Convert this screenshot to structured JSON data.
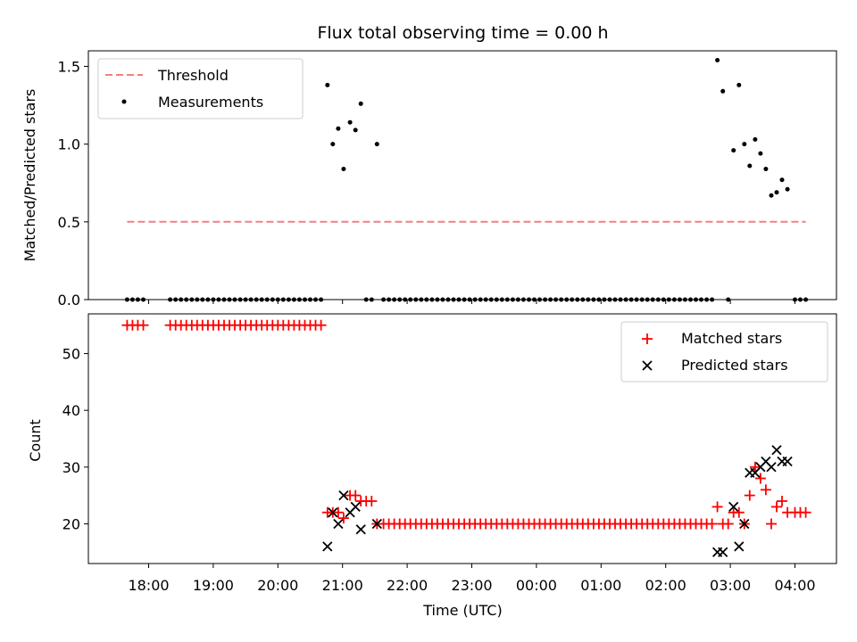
{
  "chart_data": [
    {
      "type": "scatter",
      "title": "Flux total observing time = 0.00 h",
      "xlabel": "",
      "ylabel": "Matched/Predicted stars",
      "ylim": [
        0,
        1.6
      ],
      "yticks": [
        "0.0",
        "0.5",
        "1.0",
        "1.5"
      ],
      "legend_position": "top-left",
      "threshold": {
        "name": "Threshold",
        "value": 0.5,
        "x_range": [
          "17:40",
          "04:10"
        ],
        "color": "#f08080"
      },
      "series": [
        {
          "name": "Measurements",
          "color": "#000000",
          "points": [
            [
              "17:40",
              0
            ],
            [
              "17:45",
              0
            ],
            [
              "17:50",
              0
            ],
            [
              "17:55",
              0
            ],
            [
              "18:20",
              0
            ],
            [
              "18:25",
              0
            ],
            [
              "18:30",
              0
            ],
            [
              "18:35",
              0
            ],
            [
              "18:40",
              0
            ],
            [
              "18:45",
              0
            ],
            [
              "18:50",
              0
            ],
            [
              "18:55",
              0
            ],
            [
              "19:00",
              0
            ],
            [
              "19:05",
              0
            ],
            [
              "19:10",
              0
            ],
            [
              "19:15",
              0
            ],
            [
              "19:20",
              0
            ],
            [
              "19:25",
              0
            ],
            [
              "19:30",
              0
            ],
            [
              "19:35",
              0
            ],
            [
              "19:40",
              0
            ],
            [
              "19:45",
              0
            ],
            [
              "19:50",
              0
            ],
            [
              "19:55",
              0
            ],
            [
              "20:00",
              0
            ],
            [
              "20:05",
              0
            ],
            [
              "20:10",
              0
            ],
            [
              "20:15",
              0
            ],
            [
              "20:20",
              0
            ],
            [
              "20:25",
              0
            ],
            [
              "20:30",
              0
            ],
            [
              "20:35",
              0
            ],
            [
              "20:40",
              0
            ],
            [
              "20:46",
              1.38
            ],
            [
              "20:51",
              1.0
            ],
            [
              "20:56",
              1.1
            ],
            [
              "21:01",
              0.84
            ],
            [
              "21:07",
              1.14
            ],
            [
              "21:12",
              1.09
            ],
            [
              "21:17",
              1.26
            ],
            [
              "21:22",
              0
            ],
            [
              "21:27",
              0
            ],
            [
              "21:32",
              1.0
            ],
            [
              "21:38",
              0
            ],
            [
              "21:43",
              0
            ],
            [
              "21:48",
              0
            ],
            [
              "21:53",
              0
            ],
            [
              "21:58",
              0
            ],
            [
              "22:03",
              0
            ],
            [
              "22:08",
              0
            ],
            [
              "22:13",
              0
            ],
            [
              "22:18",
              0
            ],
            [
              "22:23",
              0
            ],
            [
              "22:28",
              0
            ],
            [
              "22:33",
              0
            ],
            [
              "22:38",
              0
            ],
            [
              "22:43",
              0
            ],
            [
              "22:48",
              0
            ],
            [
              "22:53",
              0
            ],
            [
              "22:58",
              0
            ],
            [
              "23:03",
              0
            ],
            [
              "23:08",
              0
            ],
            [
              "23:13",
              0
            ],
            [
              "23:18",
              0
            ],
            [
              "23:23",
              0
            ],
            [
              "23:28",
              0
            ],
            [
              "23:33",
              0
            ],
            [
              "23:38",
              0
            ],
            [
              "23:43",
              0
            ],
            [
              "23:48",
              0
            ],
            [
              "23:53",
              0
            ],
            [
              "23:58",
              0
            ],
            [
              "00:03",
              0
            ],
            [
              "00:08",
              0
            ],
            [
              "00:13",
              0
            ],
            [
              "00:18",
              0
            ],
            [
              "00:23",
              0
            ],
            [
              "00:28",
              0
            ],
            [
              "00:33",
              0
            ],
            [
              "00:38",
              0
            ],
            [
              "00:43",
              0
            ],
            [
              "00:48",
              0
            ],
            [
              "00:53",
              0
            ],
            [
              "00:58",
              0
            ],
            [
              "01:03",
              0
            ],
            [
              "01:08",
              0
            ],
            [
              "01:13",
              0
            ],
            [
              "01:18",
              0
            ],
            [
              "01:23",
              0
            ],
            [
              "01:28",
              0
            ],
            [
              "01:33",
              0
            ],
            [
              "01:38",
              0
            ],
            [
              "01:43",
              0
            ],
            [
              "01:48",
              0
            ],
            [
              "01:53",
              0
            ],
            [
              "01:58",
              0
            ],
            [
              "02:03",
              0
            ],
            [
              "02:08",
              0
            ],
            [
              "02:13",
              0
            ],
            [
              "02:18",
              0
            ],
            [
              "02:23",
              0
            ],
            [
              "02:28",
              0
            ],
            [
              "02:33",
              0
            ],
            [
              "02:38",
              0
            ],
            [
              "02:43",
              0
            ],
            [
              "02:48",
              1.54
            ],
            [
              "02:53",
              1.34
            ],
            [
              "02:58",
              0
            ],
            [
              "03:03",
              0.96
            ],
            [
              "03:08",
              1.38
            ],
            [
              "03:13",
              1.0
            ],
            [
              "03:18",
              0.86
            ],
            [
              "03:23",
              1.03
            ],
            [
              "03:28",
              0.94
            ],
            [
              "03:33",
              0.84
            ],
            [
              "03:38",
              0.67
            ],
            [
              "03:43",
              0.69
            ],
            [
              "03:48",
              0.77
            ],
            [
              "03:53",
              0.71
            ],
            [
              "04:00",
              0
            ],
            [
              "04:05",
              0
            ],
            [
              "04:10",
              0
            ]
          ]
        }
      ]
    },
    {
      "type": "scatter",
      "title": "",
      "xlabel": "Time (UTC)",
      "ylabel": "Count",
      "ylim": [
        13,
        57
      ],
      "yticks": [
        "20",
        "30",
        "40",
        "50"
      ],
      "xticks": [
        "18:00",
        "19:00",
        "20:00",
        "21:00",
        "22:00",
        "23:00",
        "00:00",
        "01:00",
        "02:00",
        "03:00",
        "04:00"
      ],
      "legend_position": "top-right",
      "series": [
        {
          "name": "Matched stars",
          "marker": "plus",
          "color": "#ff0000",
          "points": [
            [
              "17:40",
              55
            ],
            [
              "17:45",
              55
            ],
            [
              "17:50",
              55
            ],
            [
              "17:55",
              55
            ],
            [
              "18:20",
              55
            ],
            [
              "18:25",
              55
            ],
            [
              "18:30",
              55
            ],
            [
              "18:35",
              55
            ],
            [
              "18:40",
              55
            ],
            [
              "18:45",
              55
            ],
            [
              "18:50",
              55
            ],
            [
              "18:55",
              55
            ],
            [
              "19:00",
              55
            ],
            [
              "19:05",
              55
            ],
            [
              "19:10",
              55
            ],
            [
              "19:15",
              55
            ],
            [
              "19:20",
              55
            ],
            [
              "19:25",
              55
            ],
            [
              "19:30",
              55
            ],
            [
              "19:35",
              55
            ],
            [
              "19:40",
              55
            ],
            [
              "19:45",
              55
            ],
            [
              "19:50",
              55
            ],
            [
              "19:55",
              55
            ],
            [
              "20:00",
              55
            ],
            [
              "20:05",
              55
            ],
            [
              "20:10",
              55
            ],
            [
              "20:15",
              55
            ],
            [
              "20:20",
              55
            ],
            [
              "20:25",
              55
            ],
            [
              "20:30",
              55
            ],
            [
              "20:35",
              55
            ],
            [
              "20:40",
              55
            ],
            [
              "20:46",
              22
            ],
            [
              "20:51",
              22
            ],
            [
              "20:56",
              22
            ],
            [
              "21:01",
              21
            ],
            [
              "21:07",
              25
            ],
            [
              "21:12",
              25
            ],
            [
              "21:17",
              24
            ],
            [
              "21:22",
              24
            ],
            [
              "21:27",
              24
            ],
            [
              "21:32",
              20
            ],
            [
              "21:38",
              20
            ],
            [
              "21:43",
              20
            ],
            [
              "21:48",
              20
            ],
            [
              "21:53",
              20
            ],
            [
              "21:58",
              20
            ],
            [
              "22:03",
              20
            ],
            [
              "22:08",
              20
            ],
            [
              "22:13",
              20
            ],
            [
              "22:18",
              20
            ],
            [
              "22:23",
              20
            ],
            [
              "22:28",
              20
            ],
            [
              "22:33",
              20
            ],
            [
              "22:38",
              20
            ],
            [
              "22:43",
              20
            ],
            [
              "22:48",
              20
            ],
            [
              "22:53",
              20
            ],
            [
              "22:58",
              20
            ],
            [
              "23:03",
              20
            ],
            [
              "23:08",
              20
            ],
            [
              "23:13",
              20
            ],
            [
              "23:18",
              20
            ],
            [
              "23:23",
              20
            ],
            [
              "23:28",
              20
            ],
            [
              "23:33",
              20
            ],
            [
              "23:38",
              20
            ],
            [
              "23:43",
              20
            ],
            [
              "23:48",
              20
            ],
            [
              "23:53",
              20
            ],
            [
              "23:58",
              20
            ],
            [
              "00:03",
              20
            ],
            [
              "00:08",
              20
            ],
            [
              "00:13",
              20
            ],
            [
              "00:18",
              20
            ],
            [
              "00:23",
              20
            ],
            [
              "00:28",
              20
            ],
            [
              "00:33",
              20
            ],
            [
              "00:38",
              20
            ],
            [
              "00:43",
              20
            ],
            [
              "00:48",
              20
            ],
            [
              "00:53",
              20
            ],
            [
              "00:58",
              20
            ],
            [
              "01:03",
              20
            ],
            [
              "01:08",
              20
            ],
            [
              "01:13",
              20
            ],
            [
              "01:18",
              20
            ],
            [
              "01:23",
              20
            ],
            [
              "01:28",
              20
            ],
            [
              "01:33",
              20
            ],
            [
              "01:38",
              20
            ],
            [
              "01:43",
              20
            ],
            [
              "01:48",
              20
            ],
            [
              "01:53",
              20
            ],
            [
              "01:58",
              20
            ],
            [
              "02:03",
              20
            ],
            [
              "02:08",
              20
            ],
            [
              "02:13",
              20
            ],
            [
              "02:18",
              20
            ],
            [
              "02:23",
              20
            ],
            [
              "02:28",
              20
            ],
            [
              "02:33",
              20
            ],
            [
              "02:38",
              20
            ],
            [
              "02:43",
              20
            ],
            [
              "02:48",
              23
            ],
            [
              "02:53",
              20
            ],
            [
              "02:58",
              20
            ],
            [
              "03:03",
              22
            ],
            [
              "03:08",
              22
            ],
            [
              "03:13",
              20
            ],
            [
              "03:18",
              25
            ],
            [
              "03:23",
              30
            ],
            [
              "03:28",
              28
            ],
            [
              "03:33",
              26
            ],
            [
              "03:38",
              20
            ],
            [
              "03:43",
              23
            ],
            [
              "03:48",
              24
            ],
            [
              "03:53",
              22
            ],
            [
              "04:00",
              22
            ],
            [
              "04:05",
              22
            ],
            [
              "04:10",
              22
            ]
          ]
        },
        {
          "name": "Predicted stars",
          "marker": "x",
          "color": "#000000",
          "points": [
            [
              "20:46",
              16
            ],
            [
              "20:51",
              22
            ],
            [
              "20:56",
              20
            ],
            [
              "21:01",
              25
            ],
            [
              "21:07",
              22
            ],
            [
              "21:12",
              23
            ],
            [
              "21:17",
              19
            ],
            [
              "21:32",
              20
            ],
            [
              "02:48",
              15
            ],
            [
              "02:53",
              15
            ],
            [
              "03:03",
              23
            ],
            [
              "03:08",
              16
            ],
            [
              "03:13",
              20
            ],
            [
              "03:18",
              29
            ],
            [
              "03:23",
              29
            ],
            [
              "03:28",
              30
            ],
            [
              "03:33",
              31
            ],
            [
              "03:38",
              30
            ],
            [
              "03:43",
              33
            ],
            [
              "03:48",
              31
            ],
            [
              "03:53",
              31
            ]
          ]
        }
      ]
    }
  ]
}
